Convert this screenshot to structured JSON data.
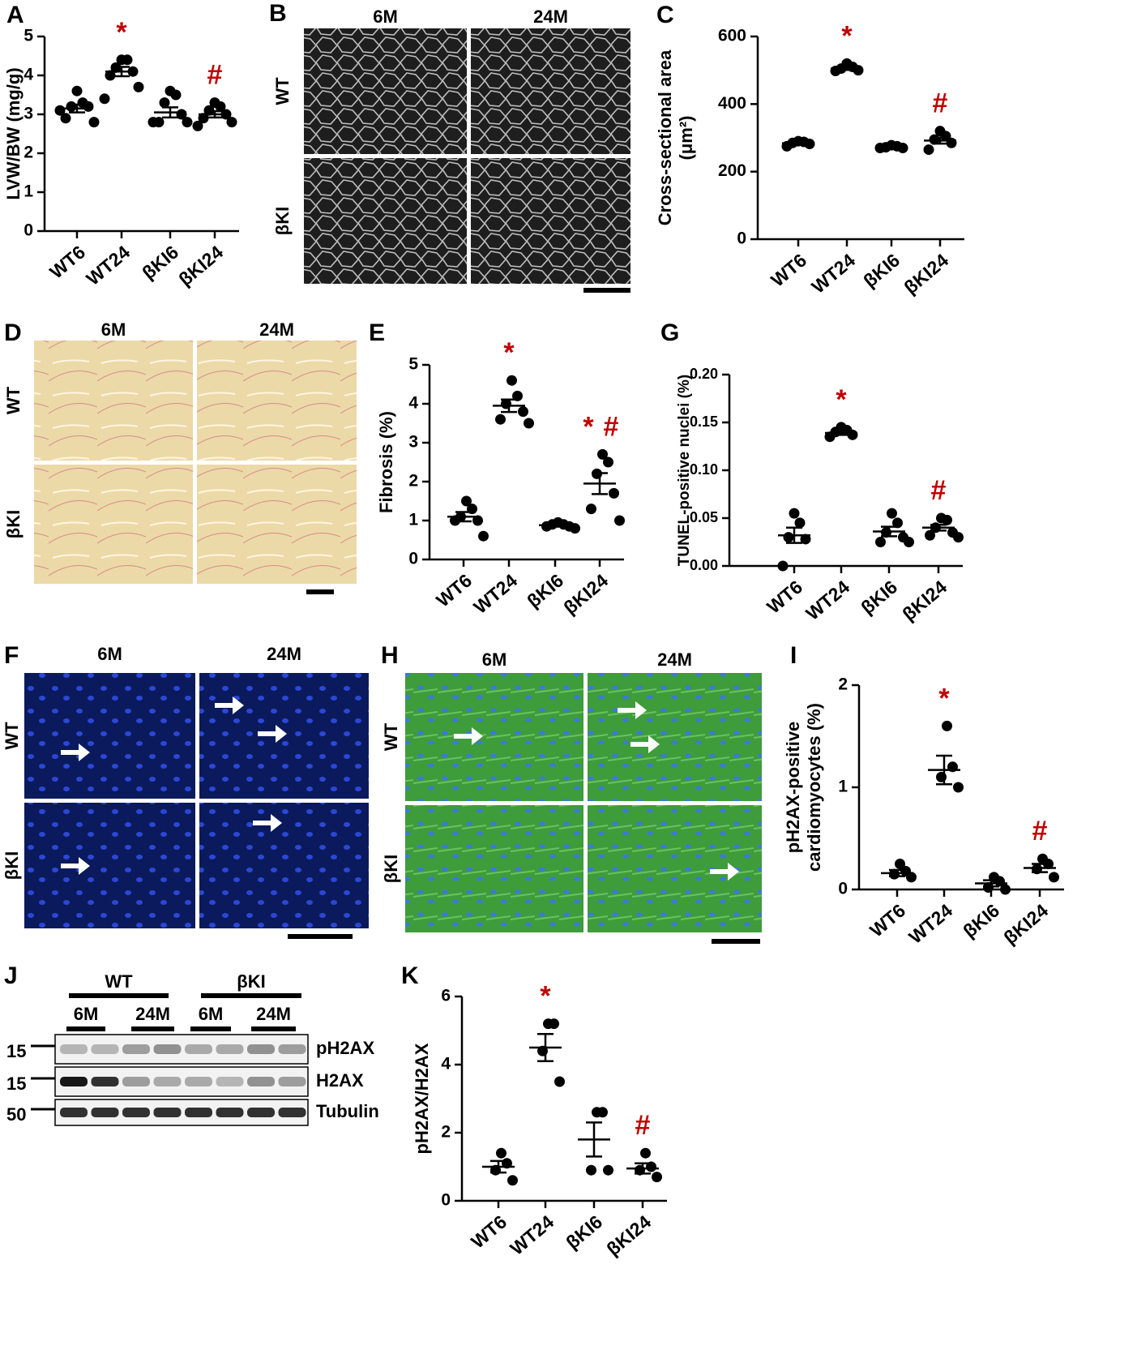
{
  "chart_data": [
    {
      "type": "dotplot",
      "panel": "A",
      "ylabel": [
        "LVW/BW (mg/g)"
      ],
      "categories": [
        "WT6",
        "WT24",
        "βKI6",
        "βKI24"
      ],
      "points": [
        [
          3.6,
          3.3,
          3.2,
          3.2,
          2.9,
          2.8,
          3.1
        ],
        [
          4.4,
          4.4,
          4.2,
          4.1,
          4.0,
          3.7,
          3.4
        ],
        [
          3.6,
          3.5,
          3.3,
          3.0,
          2.8,
          2.8,
          2.8
        ],
        [
          3.3,
          3.2,
          3.1,
          3.0,
          2.9,
          2.8,
          2.7
        ]
      ],
      "mean": [
        3.15,
        4.1,
        3.05,
        3.0
      ],
      "sem": [
        0.1,
        0.12,
        0.13,
        0.08
      ],
      "color": "#000000",
      "ylim": [
        0,
        5
      ],
      "yticks": [
        0,
        1,
        2,
        3,
        4,
        5
      ],
      "annotations": [
        {
          "text": "*",
          "category": "WT24",
          "color": "#c00000"
        },
        {
          "text": "#",
          "category": "βKI24",
          "color": "#c00000"
        }
      ]
    },
    {
      "type": "dotplot",
      "panel": "C",
      "ylabel": [
        "Cross-sectional area",
        "(μm²)"
      ],
      "categories": [
        "WT6",
        "WT24",
        "βKI6",
        "βKI24"
      ],
      "points": [
        [
          290,
          288,
          285,
          282,
          275
        ],
        [
          520,
          510,
          505,
          500,
          498
        ],
        [
          278,
          275,
          272,
          270,
          270
        ],
        [
          320,
          305,
          295,
          285,
          265
        ]
      ],
      "mean": [
        284,
        505,
        272,
        292
      ],
      "sem": [
        3,
        4,
        2,
        9
      ],
      "color": "#000000",
      "ylim": [
        0,
        600
      ],
      "yticks": [
        0,
        200,
        400,
        600
      ],
      "annotations": [
        {
          "text": "*",
          "category": "WT24",
          "color": "#c00000"
        },
        {
          "text": "#",
          "category": "βKI24",
          "color": "#c00000"
        }
      ]
    },
    {
      "type": "dotplot",
      "panel": "E",
      "ylabel": [
        "Fibrosis (%)"
      ],
      "categories": [
        "WT6",
        "WT24",
        "βKI6",
        "βKI24"
      ],
      "points": [
        [
          1.5,
          1.3,
          1.1,
          1.0,
          1.0,
          0.6
        ],
        [
          4.6,
          4.2,
          4.0,
          3.8,
          3.6,
          3.5
        ],
        [
          0.95,
          0.9,
          0.9,
          0.85,
          0.85,
          0.8
        ],
        [
          2.7,
          2.5,
          2.2,
          1.7,
          1.3,
          1.0
        ]
      ],
      "mean": [
        1.1,
        3.95,
        0.88,
        1.95
      ],
      "sem": [
        0.12,
        0.16,
        0.03,
        0.27
      ],
      "color": "#000000",
      "ylim": [
        0,
        5
      ],
      "yticks": [
        0,
        1,
        2,
        3,
        4,
        5
      ],
      "annotations": [
        {
          "text": "*",
          "category": "WT24",
          "color": "#c00000"
        },
        {
          "text": "*",
          "category": "βKI24",
          "color": "#c00000"
        },
        {
          "text": "#",
          "category": "βKI24",
          "color": "#c00000"
        }
      ]
    },
    {
      "type": "dotplot",
      "panel": "G",
      "ylabel": [
        "TUNEL-positive nuclei (%)"
      ],
      "categories": [
        "WT6",
        "WT24",
        "βKI6",
        "βKI24"
      ],
      "points": [
        [
          0.055,
          0.045,
          0.03,
          0.028,
          0.0
        ],
        [
          0.145,
          0.142,
          0.14,
          0.137,
          0.135
        ],
        [
          0.055,
          0.045,
          0.035,
          0.03,
          0.025,
          0.025
        ],
        [
          0.05,
          0.048,
          0.04,
          0.035,
          0.032,
          0.03
        ]
      ],
      "mean": [
        0.032,
        0.139,
        0.036,
        0.04
      ],
      "sem": [
        0.008,
        0.002,
        0.005,
        0.003
      ],
      "color": "#000000",
      "ylim": [
        0,
        0.2
      ],
      "yticks": [
        {
          "value": 0,
          "label": "0.00"
        },
        {
          "value": 0.05,
          "label": "0.05"
        },
        {
          "value": 0.1,
          "label": "0.10"
        },
        {
          "value": 0.15,
          "label": "0.15"
        },
        {
          "value": 0.2,
          "label": "0.20"
        }
      ],
      "annotations": [
        {
          "text": "*",
          "category": "WT24",
          "color": "#c00000"
        },
        {
          "text": "#",
          "category": "βKI24",
          "color": "#c00000"
        }
      ]
    },
    {
      "type": "dotplot",
      "panel": "I",
      "ylabel": [
        "pH2AX-positive",
        "cardiomyocytes (%)"
      ],
      "categories": [
        "WT6",
        "WT24",
        "βKI6",
        "βKI24"
      ],
      "points": [
        [
          0.25,
          0.18,
          0.15,
          0.12
        ],
        [
          1.6,
          1.2,
          1.1,
          1.0
        ],
        [
          0.12,
          0.08,
          0.02,
          0.0
        ],
        [
          0.3,
          0.25,
          0.2,
          0.12
        ]
      ],
      "mean": [
        0.16,
        1.17,
        0.06,
        0.21
      ],
      "sem": [
        0.03,
        0.14,
        0.03,
        0.04
      ],
      "color": "#000000",
      "ylim": [
        0,
        2
      ],
      "yticks": [
        0,
        1,
        2
      ],
      "annotations": [
        {
          "text": "*",
          "category": "WT24",
          "color": "#c00000"
        },
        {
          "text": "#",
          "category": "βKI24",
          "color": "#c00000"
        }
      ]
    },
    {
      "type": "dotplot",
      "panel": "K",
      "ylabel": [
        "pH2AX/H2AX"
      ],
      "categories": [
        "WT6",
        "WT24",
        "βKI6",
        "βKI24"
      ],
      "points": [
        [
          1.4,
          1.1,
          0.9,
          0.6
        ],
        [
          5.2,
          5.2,
          4.4,
          3.5
        ],
        [
          2.6,
          2.6,
          0.9,
          0.9
        ],
        [
          1.4,
          1.0,
          0.9,
          0.7
        ]
      ],
      "mean": [
        1.0,
        4.5,
        1.8,
        0.95
      ],
      "sem": [
        0.17,
        0.4,
        0.5,
        0.15
      ],
      "color": "#000000",
      "ylim": [
        0,
        6
      ],
      "yticks": [
        0,
        2,
        4,
        6
      ],
      "annotations": [
        {
          "text": "*",
          "category": "WT24",
          "color": "#c00000"
        },
        {
          "text": "#",
          "category": "βKI24",
          "color": "#c00000"
        }
      ]
    }
  ],
  "images": [
    {
      "panel": "B",
      "columns": [
        "6M",
        "24M"
      ],
      "rows": [
        "WT",
        "βKI"
      ]
    },
    {
      "panel": "D",
      "columns": [
        "6M",
        "24M"
      ],
      "rows": [
        "WT",
        "βKI"
      ]
    },
    {
      "panel": "F",
      "columns": [
        "6M",
        "24M"
      ],
      "rows": [
        "WT",
        "βKI"
      ]
    },
    {
      "panel": "H",
      "columns": [
        "6M",
        "24M"
      ],
      "rows": [
        "WT",
        "βKI"
      ]
    }
  ],
  "blot": {
    "panel": "J",
    "groups": [
      "WT",
      "βKI"
    ],
    "ages": [
      "6M",
      "24M",
      "6M",
      "24M"
    ],
    "markers": [
      "15",
      "15",
      "50"
    ],
    "bands": [
      "pH2AX",
      "H2AX",
      "Tubulin"
    ]
  }
}
